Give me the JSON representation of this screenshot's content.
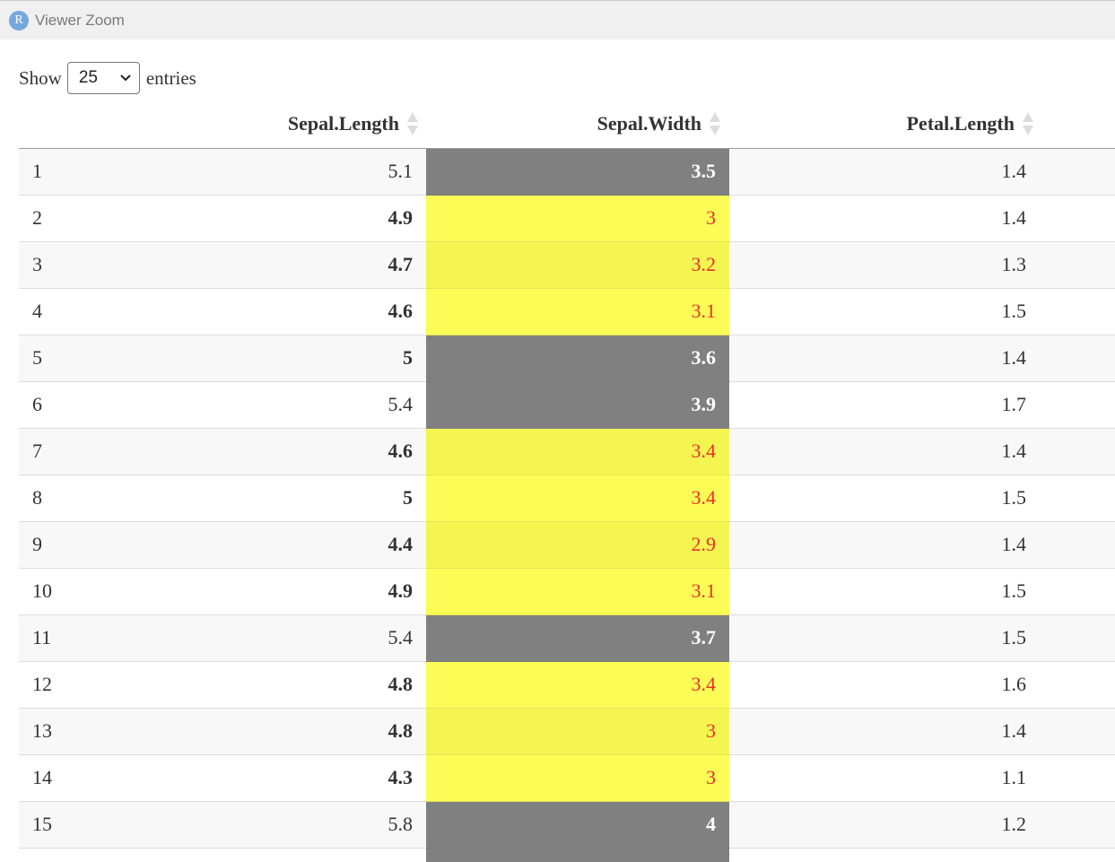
{
  "window": {
    "logo_letter": "R",
    "title": "Viewer Zoom"
  },
  "length_menu": {
    "prefix": "Show",
    "selected": "25",
    "suffix": "entries"
  },
  "colors": {
    "highlight_low": "#fbfc55",
    "highlight_high": "#808080",
    "low_text": "#e8312b"
  },
  "table": {
    "columns": [
      "",
      "Sepal.Length",
      "Sepal.Width",
      "Petal.Length"
    ],
    "rows": [
      {
        "index": "1",
        "sepal_length": "5.1",
        "sepal_width": "3.5",
        "petal_length": "1.4",
        "sl_bold": false,
        "sw_style": "gray"
      },
      {
        "index": "2",
        "sepal_length": "4.9",
        "sepal_width": "3",
        "petal_length": "1.4",
        "sl_bold": true,
        "sw_style": "yellow"
      },
      {
        "index": "3",
        "sepal_length": "4.7",
        "sepal_width": "3.2",
        "petal_length": "1.3",
        "sl_bold": true,
        "sw_style": "yellow"
      },
      {
        "index": "4",
        "sepal_length": "4.6",
        "sepal_width": "3.1",
        "petal_length": "1.5",
        "sl_bold": true,
        "sw_style": "yellow"
      },
      {
        "index": "5",
        "sepal_length": "5",
        "sepal_width": "3.6",
        "petal_length": "1.4",
        "sl_bold": true,
        "sw_style": "gray"
      },
      {
        "index": "6",
        "sepal_length": "5.4",
        "sepal_width": "3.9",
        "petal_length": "1.7",
        "sl_bold": false,
        "sw_style": "gray"
      },
      {
        "index": "7",
        "sepal_length": "4.6",
        "sepal_width": "3.4",
        "petal_length": "1.4",
        "sl_bold": true,
        "sw_style": "yellow"
      },
      {
        "index": "8",
        "sepal_length": "5",
        "sepal_width": "3.4",
        "petal_length": "1.5",
        "sl_bold": true,
        "sw_style": "yellow"
      },
      {
        "index": "9",
        "sepal_length": "4.4",
        "sepal_width": "2.9",
        "petal_length": "1.4",
        "sl_bold": true,
        "sw_style": "yellow"
      },
      {
        "index": "10",
        "sepal_length": "4.9",
        "sepal_width": "3.1",
        "petal_length": "1.5",
        "sl_bold": true,
        "sw_style": "yellow"
      },
      {
        "index": "11",
        "sepal_length": "5.4",
        "sepal_width": "3.7",
        "petal_length": "1.5",
        "sl_bold": false,
        "sw_style": "gray"
      },
      {
        "index": "12",
        "sepal_length": "4.8",
        "sepal_width": "3.4",
        "petal_length": "1.6",
        "sl_bold": true,
        "sw_style": "yellow"
      },
      {
        "index": "13",
        "sepal_length": "4.8",
        "sepal_width": "3",
        "petal_length": "1.4",
        "sl_bold": true,
        "sw_style": "yellow"
      },
      {
        "index": "14",
        "sepal_length": "4.3",
        "sepal_width": "3",
        "petal_length": "1.1",
        "sl_bold": true,
        "sw_style": "yellow"
      },
      {
        "index": "15",
        "sepal_length": "5.8",
        "sepal_width": "4",
        "petal_length": "1.2",
        "sl_bold": false,
        "sw_style": "gray"
      }
    ]
  }
}
